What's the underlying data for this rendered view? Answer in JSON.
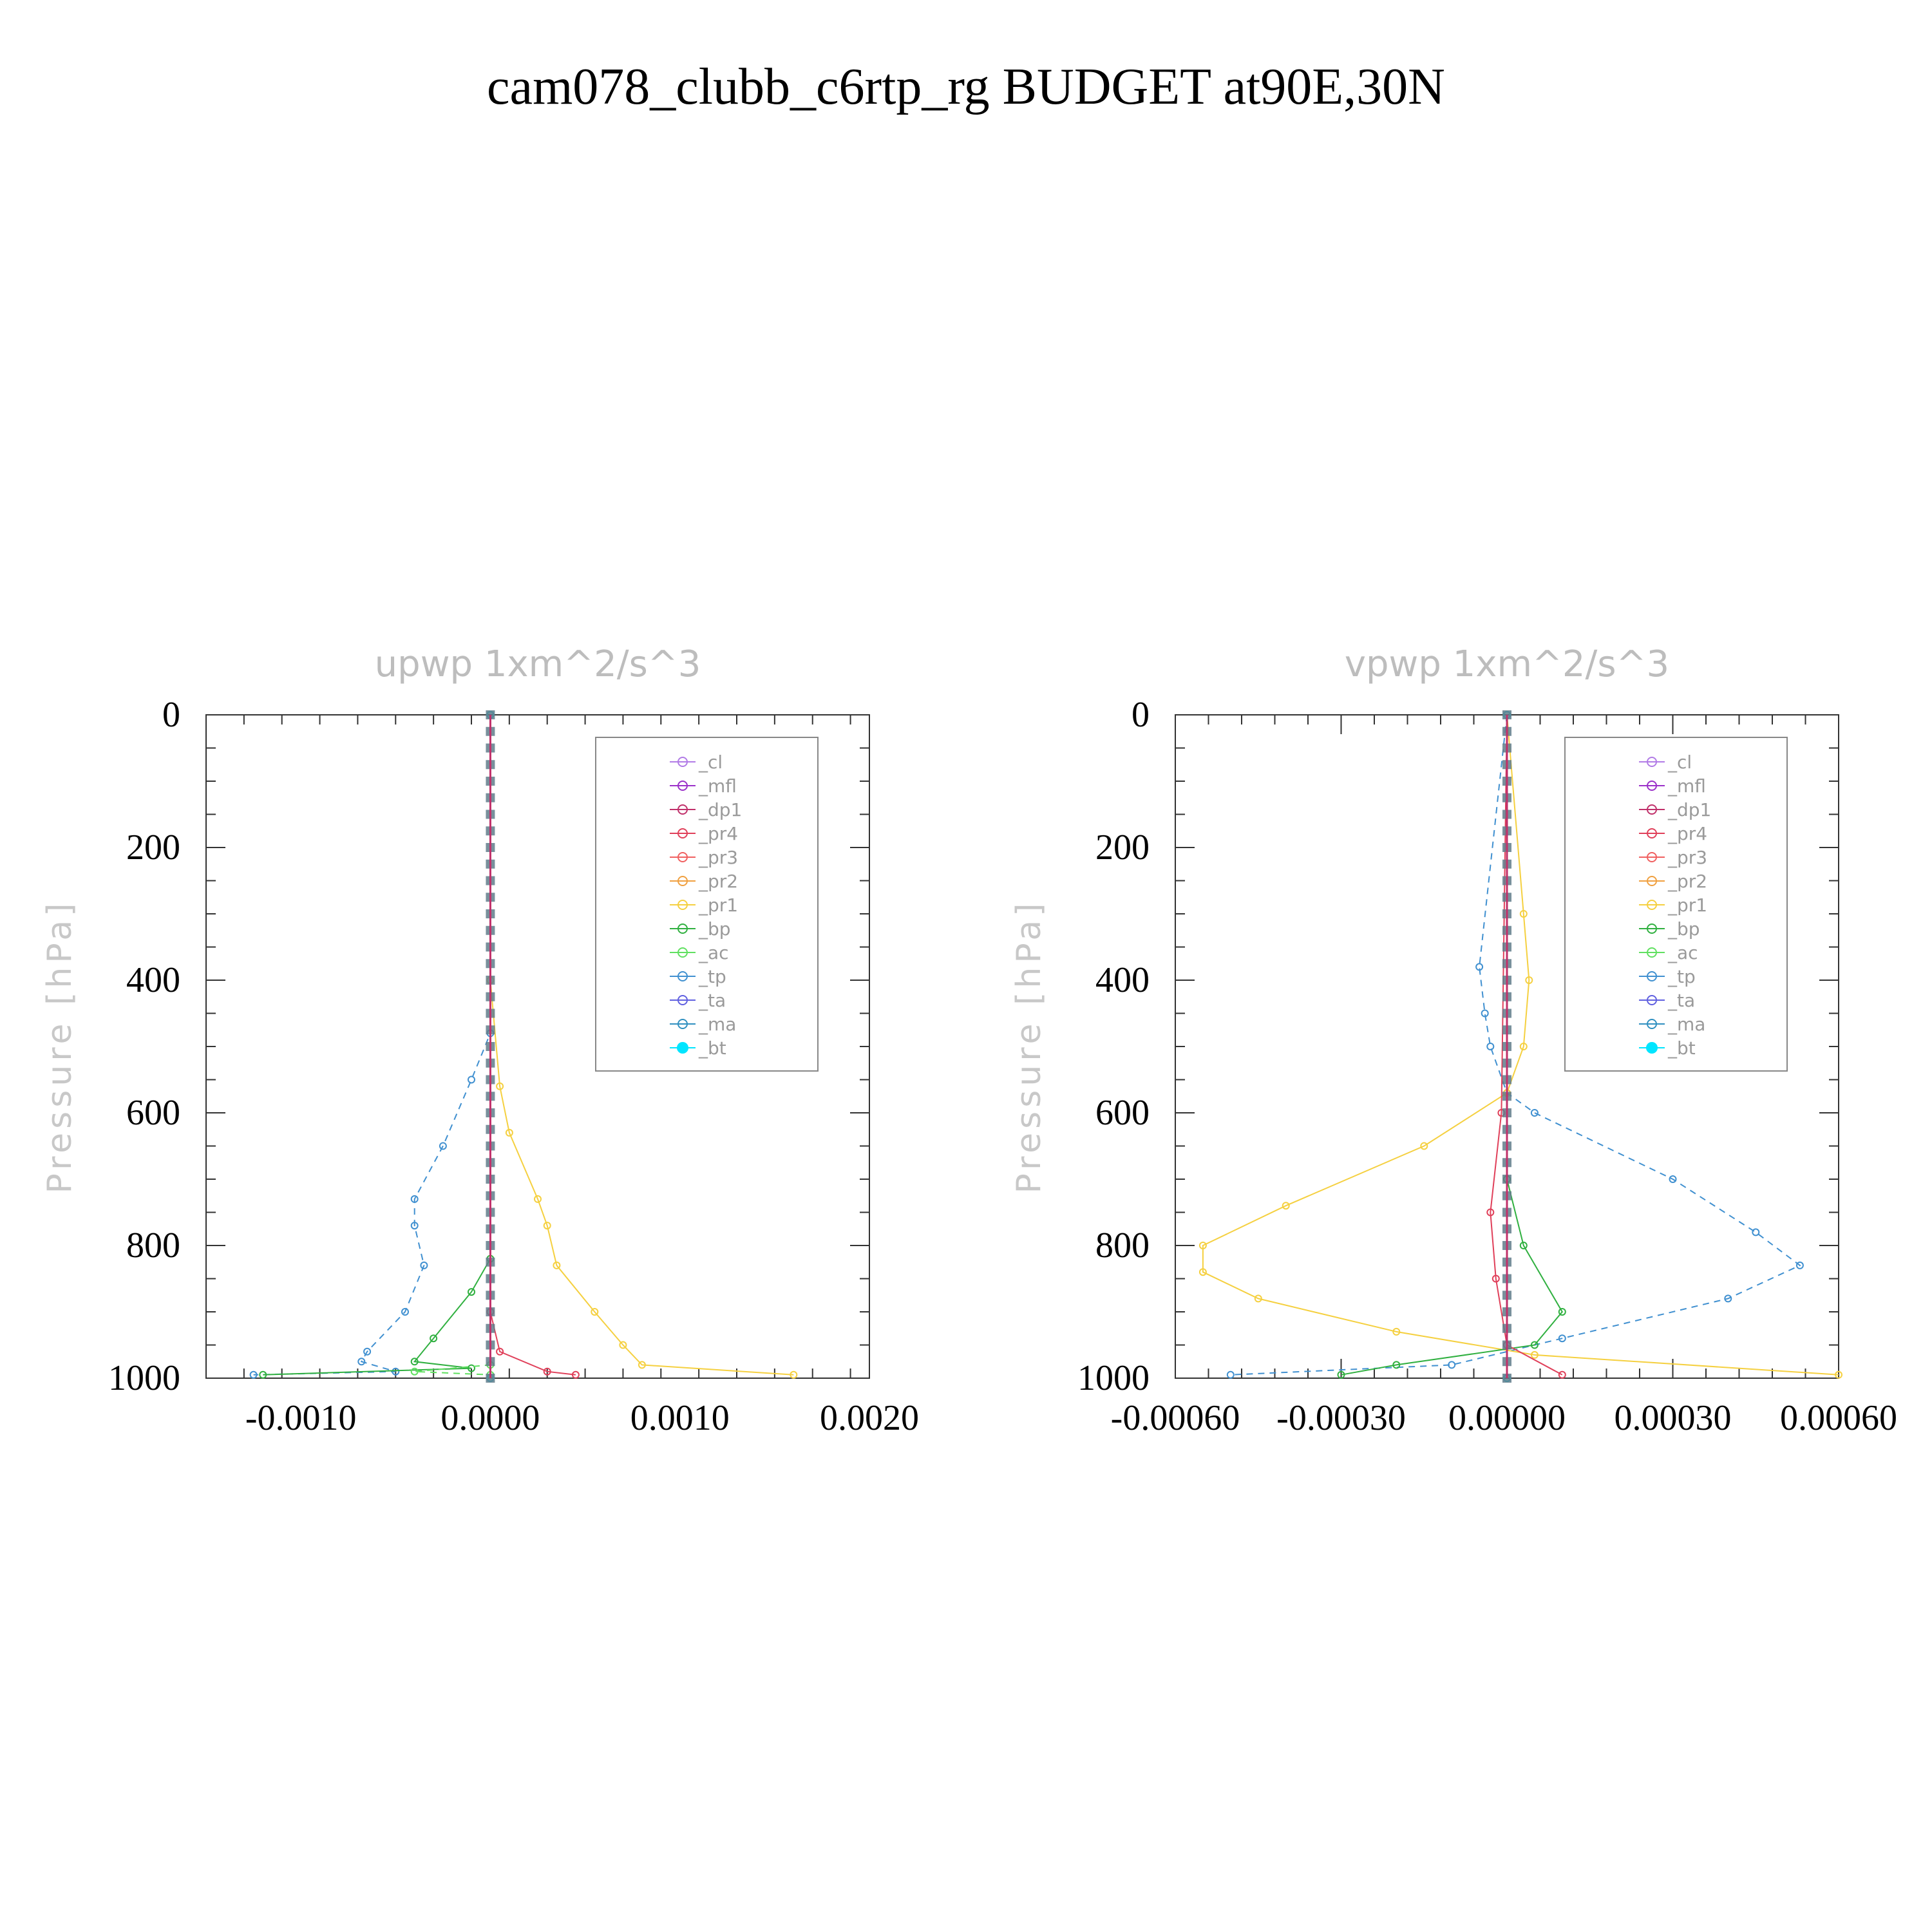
{
  "title": "cam078_clubb_c6rtp_rg  BUDGET at90E,30N",
  "colors": {
    "_cl": "#b17be6",
    "_mfl": "#9b30c9",
    "_dp1": "#c0306a",
    "_pr4": "#e0405a",
    "_pr3": "#f06060",
    "_pr2": "#f0a040",
    "_pr1": "#f5d040",
    "_bp": "#30b040",
    "_ac": "#60e060",
    "_tp": "#4090d0",
    "_ta": "#6060e0",
    "_ma": "#3090c0",
    "_bt": "#00e5ff"
  },
  "chart_data": [
    {
      "type": "line",
      "title": "upwp   1xm^2/s^3",
      "ylabel": "Pressure [hPa]",
      "xlim": [
        -0.0015,
        0.002
      ],
      "ylim": [
        1000,
        0
      ],
      "y_inverted": true,
      "xticks": [
        -0.001,
        0.0,
        0.001,
        0.002
      ],
      "xtick_labels": [
        "-0.0010",
        "0.0000",
        "0.0010",
        "0.0020"
      ],
      "yticks": [
        0,
        200,
        400,
        600,
        800,
        1000
      ],
      "ytick_labels": [
        "0",
        "200",
        "400",
        "600",
        "800",
        "1000"
      ],
      "legend_position": "top-right",
      "series": [
        {
          "name": "_tp",
          "x": [
            0,
            0,
            -0.0001,
            -0.00025,
            -0.0004,
            -0.0004,
            -0.00035,
            -0.00045,
            -0.00065,
            -0.00068,
            -0.0005,
            -0.00125
          ],
          "y": [
            0,
            480,
            550,
            650,
            730,
            770,
            830,
            900,
            960,
            975,
            990,
            995
          ]
        },
        {
          "name": "_pr1",
          "x": [
            0,
            0,
            5e-05,
            0.0001,
            0.00025,
            0.0003,
            0.00035,
            0.00055,
            0.0007,
            0.0008,
            0.0016
          ],
          "y": [
            0,
            400,
            560,
            630,
            730,
            770,
            830,
            900,
            950,
            980,
            995
          ]
        },
        {
          "name": "_bp",
          "x": [
            0,
            0,
            -0.0001,
            -0.0003,
            -0.0004,
            -0.0001,
            -0.0012
          ],
          "y": [
            0,
            820,
            870,
            940,
            975,
            985,
            995
          ]
        },
        {
          "name": "_pr4",
          "x": [
            0,
            0,
            5e-05,
            0.0003,
            0.00045
          ],
          "y": [
            0,
            900,
            960,
            990,
            995
          ]
        },
        {
          "name": "_ac",
          "x": [
            0,
            0,
            -0.0004,
            0
          ],
          "y": [
            0,
            980,
            990,
            995
          ]
        },
        {
          "name": "_dp1",
          "x": [
            0,
            0
          ],
          "y": [
            0,
            1000
          ]
        },
        {
          "name": "_bt",
          "x": [
            0,
            0
          ],
          "y": [
            0,
            1000
          ]
        }
      ],
      "legend": [
        "_cl",
        "_mfl",
        "_dp1",
        "_pr4",
        "_pr3",
        "_pr2",
        "_pr1",
        "_bp",
        "_ac",
        "_tp",
        "_ta",
        "_ma",
        "_bt"
      ]
    },
    {
      "type": "line",
      "title": "vpwp   1xm^2/s^3",
      "ylabel": "Pressure [hPa]",
      "xlim": [
        -0.0006,
        0.0006
      ],
      "ylim": [
        1000,
        0
      ],
      "y_inverted": true,
      "xticks": [
        -0.0006,
        -0.0003,
        0.0,
        0.0003,
        0.0006
      ],
      "xtick_labels": [
        "-0.00060",
        "-0.00030",
        "0.00000",
        "0.00030",
        "0.00060"
      ],
      "yticks": [
        0,
        200,
        400,
        600,
        800,
        1000
      ],
      "ytick_labels": [
        "0",
        "200",
        "400",
        "600",
        "800",
        "1000"
      ],
      "legend_position": "top-right",
      "series": [
        {
          "name": "_tp",
          "x": [
            0,
            -5e-05,
            -4e-05,
            -3e-05,
            0,
            5e-05,
            0.0003,
            0.00045,
            0.00053,
            0.0004,
            0.0001,
            -0.0001,
            -0.0005
          ],
          "y": [
            0,
            380,
            450,
            500,
            570,
            600,
            700,
            780,
            830,
            880,
            940,
            980,
            995
          ]
        },
        {
          "name": "_pr1",
          "x": [
            0,
            3e-05,
            4e-05,
            3e-05,
            0,
            -0.00015,
            -0.0004,
            -0.00055,
            -0.00055,
            -0.00045,
            -0.0002,
            5e-05,
            0.0006
          ],
          "y": [
            0,
            300,
            400,
            500,
            570,
            650,
            740,
            800,
            840,
            880,
            930,
            965,
            995
          ]
        },
        {
          "name": "_bp",
          "x": [
            0,
            0,
            3e-05,
            0.0001,
            5e-05,
            -0.0002,
            -0.0003
          ],
          "y": [
            0,
            700,
            800,
            900,
            950,
            980,
            995
          ]
        },
        {
          "name": "_pr4",
          "x": [
            0,
            -1e-05,
            -3e-05,
            -2e-05,
            0,
            0.0001
          ],
          "y": [
            0,
            600,
            750,
            850,
            950,
            995
          ]
        },
        {
          "name": "_dp1",
          "x": [
            0,
            0
          ],
          "y": [
            0,
            1000
          ]
        },
        {
          "name": "_bt",
          "x": [
            0,
            0
          ],
          "y": [
            0,
            1000
          ]
        }
      ],
      "legend": [
        "_cl",
        "_mfl",
        "_dp1",
        "_pr4",
        "_pr3",
        "_pr2",
        "_pr1",
        "_bp",
        "_ac",
        "_tp",
        "_ta",
        "_ma",
        "_bt"
      ]
    }
  ]
}
